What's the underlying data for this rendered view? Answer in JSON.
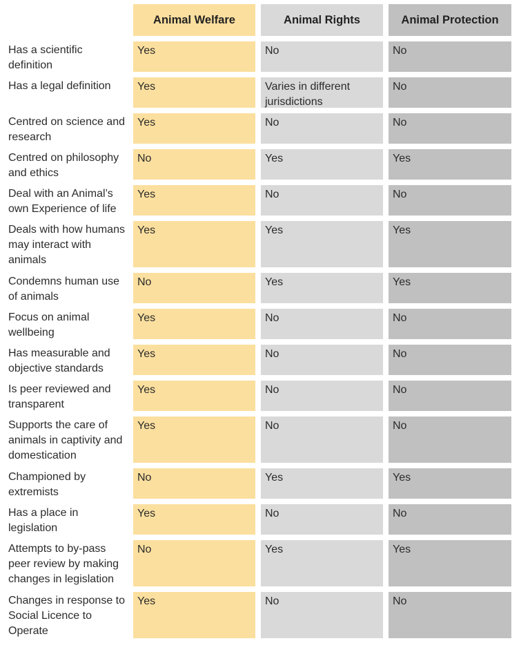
{
  "headers": {
    "welfare": "Animal Welfare",
    "rights": "Animal Rights",
    "protection": "Animal Protection"
  },
  "rows": [
    {
      "label": "Has a scientific definition",
      "welfare": "Yes",
      "rights": "No",
      "protection": "No"
    },
    {
      "label": "Has a legal definition",
      "welfare": "Yes",
      "rights": "Varies in different jurisdictions",
      "protection": "No"
    },
    {
      "label": "Centred on science and research",
      "welfare": "Yes",
      "rights": "No",
      "protection": "No"
    },
    {
      "label": "Centred on philosophy and ethics",
      "welfare": "No",
      "rights": "Yes",
      "protection": "Yes"
    },
    {
      "label": "Deal with an Animal’s own Experience of life",
      "welfare": "Yes",
      "rights": "No",
      "protection": "No"
    },
    {
      "label": "Deals with how humans may interact with animals",
      "welfare": "Yes",
      "rights": "Yes",
      "protection": "Yes"
    },
    {
      "label": "Condemns human use of animals",
      "welfare": "No",
      "rights": "Yes",
      "protection": "Yes"
    },
    {
      "label": "Focus on animal wellbeing",
      "welfare": "Yes",
      "rights": "No",
      "protection": "No"
    },
    {
      "label": "Has measurable and objective standards",
      "welfare": "Yes",
      "rights": "No",
      "protection": "No"
    },
    {
      "label": "Is peer reviewed and transparent",
      "welfare": "Yes",
      "rights": "No",
      "protection": "No"
    },
    {
      "label": "Supports the care of animals in captivity and domestication",
      "welfare": "Yes",
      "rights": "No",
      "protection": "No"
    },
    {
      "label": "Championed by extremists",
      "welfare": "No",
      "rights": "Yes",
      "protection": "Yes"
    },
    {
      "label": "Has a place in legislation",
      "welfare": "Yes",
      "rights": "No",
      "protection": "No"
    },
    {
      "label": "Attempts to by-pass peer review by making changes in legislation",
      "welfare": "No",
      "rights": "Yes",
      "protection": "Yes"
    },
    {
      "label": "Changes in response to Social Licence to Operate",
      "welfare": "Yes",
      "rights": "No",
      "protection": "No"
    }
  ],
  "colors": {
    "welfare": "#fbdf9e",
    "rights": "#d9d9d9",
    "protection": "#c0c0c0"
  }
}
